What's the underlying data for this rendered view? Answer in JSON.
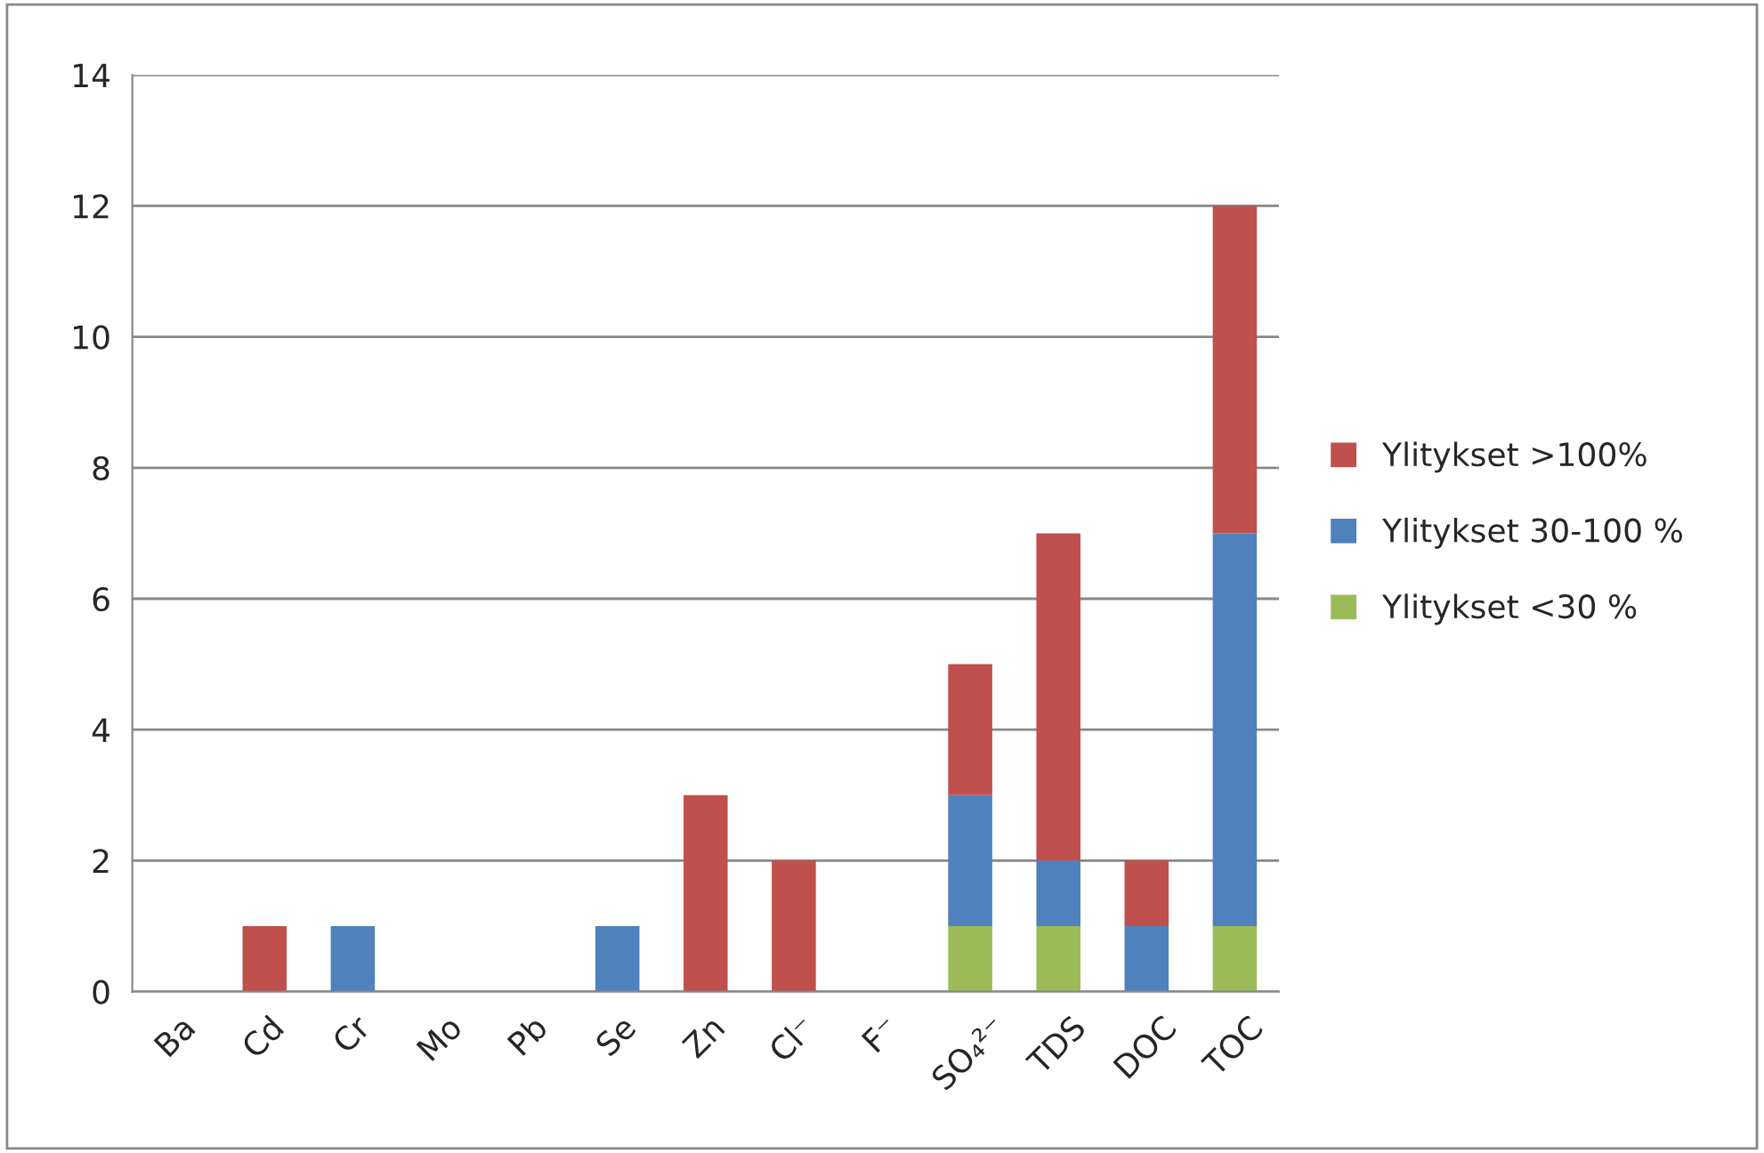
{
  "chart_data": {
    "type": "bar",
    "stacked": true,
    "categories": [
      "Ba",
      "Cd",
      "Cr",
      "Mo",
      "Pb",
      "Se",
      "Zn",
      "Cl⁻",
      "F⁻",
      "SO₄²⁻",
      "TDS",
      "DOC",
      "TOC"
    ],
    "series": [
      {
        "name": "Ylitykset <30 %",
        "color": "#9bbb59",
        "values": [
          0,
          0,
          0,
          0,
          0,
          0,
          0,
          0,
          0,
          1,
          1,
          0,
          1
        ]
      },
      {
        "name": "Ylitykset 30-100 %",
        "color": "#4f81bd",
        "values": [
          0,
          0,
          1,
          0,
          0,
          1,
          0,
          0,
          0,
          2,
          1,
          1,
          6
        ]
      },
      {
        "name": "Ylitykset >100%",
        "color": "#c0504d",
        "values": [
          0,
          1,
          0,
          0,
          0,
          0,
          3,
          2,
          0,
          2,
          5,
          1,
          5
        ]
      }
    ],
    "ylim": [
      0,
      14
    ],
    "yticks": [
      0,
      2,
      4,
      6,
      8,
      10,
      12,
      14
    ],
    "grid": "y",
    "legend": "right"
  }
}
